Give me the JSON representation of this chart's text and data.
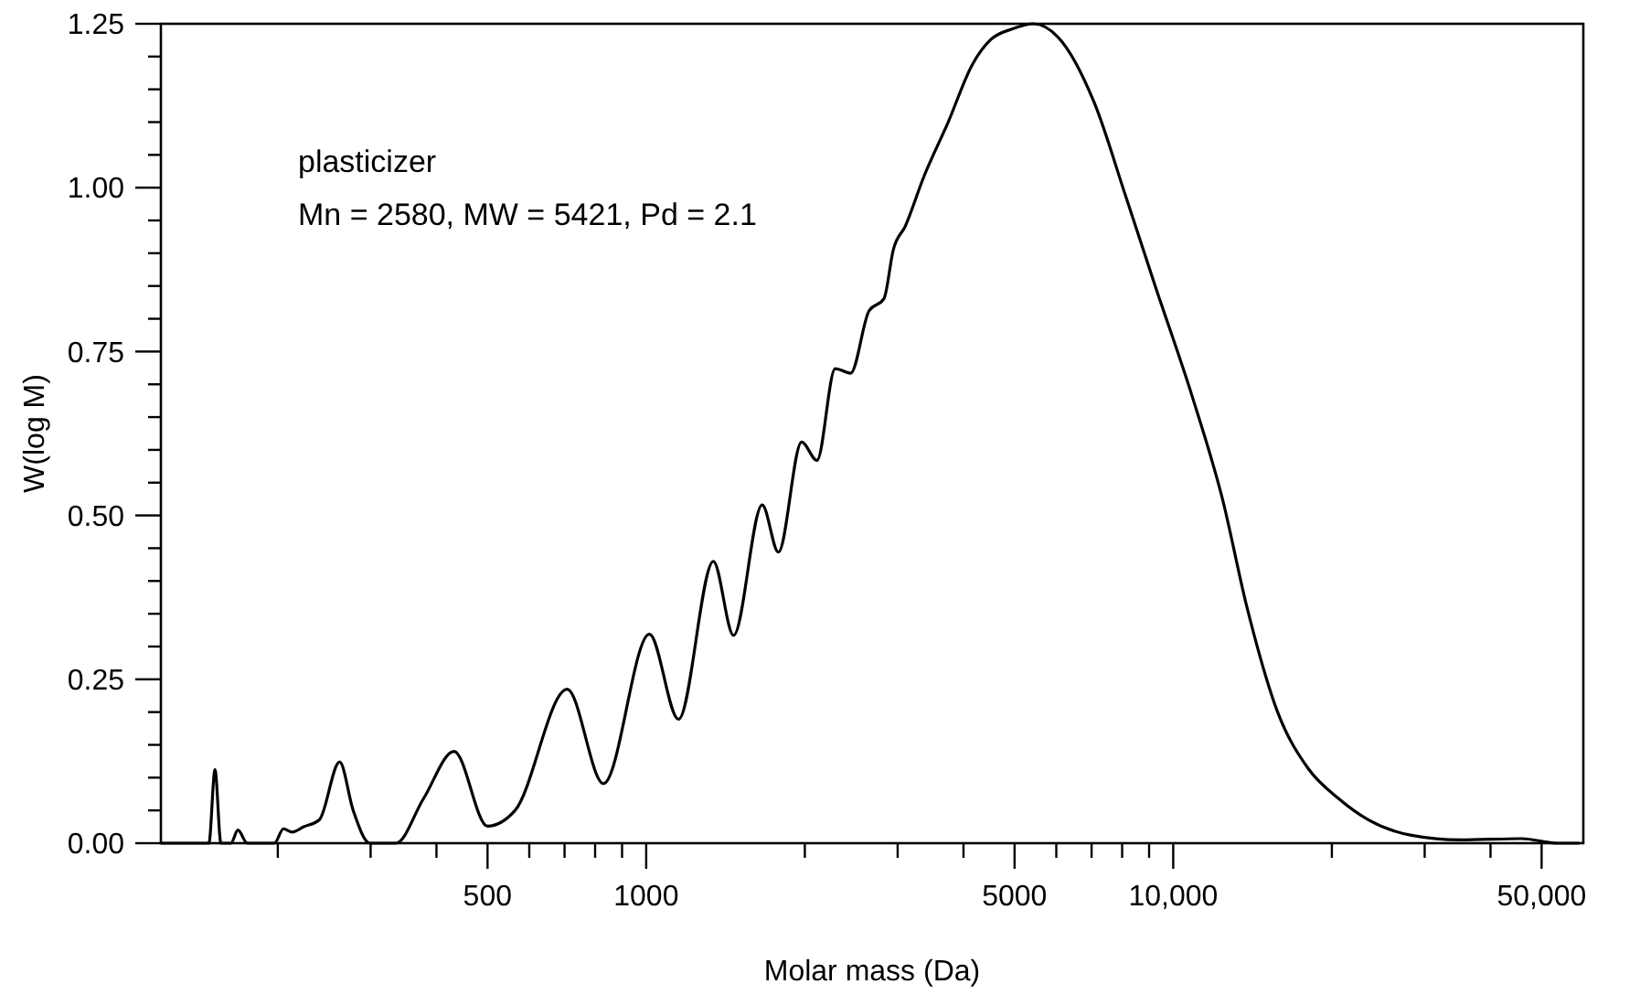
{
  "chart_data": {
    "type": "line",
    "xlabel": "Molar mass (Da)",
    "ylabel": "W(log M)",
    "log": "x",
    "annotations": [
      "plasticizer",
      "Mn = 2580, MW = 5421, Pd = 2.1"
    ],
    "xlim": [
      120,
      60000
    ],
    "xticks": [
      {
        "value": 200,
        "label": null
      },
      {
        "value": 300,
        "label": null
      },
      {
        "value": 400,
        "label": null
      },
      {
        "value": 500,
        "label": "500"
      },
      {
        "value": 600,
        "label": null
      },
      {
        "value": 700,
        "label": null
      },
      {
        "value": 800,
        "label": null
      },
      {
        "value": 900,
        "label": null
      },
      {
        "value": 1000,
        "label": "1000"
      },
      {
        "value": 2000,
        "label": null
      },
      {
        "value": 3000,
        "label": null
      },
      {
        "value": 4000,
        "label": null
      },
      {
        "value": 5000,
        "label": "5000"
      },
      {
        "value": 6000,
        "label": null
      },
      {
        "value": 7000,
        "label": null
      },
      {
        "value": 8000,
        "label": null
      },
      {
        "value": 9000,
        "label": null
      },
      {
        "value": 10000,
        "label": "10,000"
      },
      {
        "value": 20000,
        "label": null
      },
      {
        "value": 30000,
        "label": null
      },
      {
        "value": 40000,
        "label": null
      },
      {
        "value": 50000,
        "label": "50,000"
      }
    ],
    "ylim": [
      0,
      1.25
    ],
    "yticks": [
      {
        "value": 0,
        "label": "0.00"
      },
      {
        "value": 0.05,
        "label": null
      },
      {
        "value": 0.1,
        "label": null
      },
      {
        "value": 0.15,
        "label": null
      },
      {
        "value": 0.2,
        "label": null
      },
      {
        "value": 0.25,
        "label": "0.25"
      },
      {
        "value": 0.3,
        "label": null
      },
      {
        "value": 0.35,
        "label": null
      },
      {
        "value": 0.4,
        "label": null
      },
      {
        "value": 0.45,
        "label": null
      },
      {
        "value": 0.5,
        "label": "0.50"
      },
      {
        "value": 0.55,
        "label": null
      },
      {
        "value": 0.6,
        "label": null
      },
      {
        "value": 0.65,
        "label": null
      },
      {
        "value": 0.7,
        "label": null
      },
      {
        "value": 0.75,
        "label": "0.75"
      },
      {
        "value": 0.8,
        "label": null
      },
      {
        "value": 0.85,
        "label": null
      },
      {
        "value": 0.9,
        "label": null
      },
      {
        "value": 0.95,
        "label": null
      },
      {
        "value": 1,
        "label": "1.00"
      },
      {
        "value": 1.05,
        "label": null
      },
      {
        "value": 1.1,
        "label": null
      },
      {
        "value": 1.15,
        "label": null
      },
      {
        "value": 1.2,
        "label": null
      },
      {
        "value": 1.25,
        "label": "1.25"
      }
    ],
    "grid": false,
    "marker": "none",
    "line_style": "solid",
    "series": [
      {
        "color": "#000000",
        "x": [
          120,
          148,
          152,
          156,
          163,
          168,
          175,
          197,
          205,
          213,
          224,
          240,
          262,
          278,
          299,
          335,
          378,
          432,
          500,
          564,
          708,
          830,
          1014,
          1152,
          1341,
          1465,
          1660,
          1782,
          1972,
          2109,
          2284,
          2443,
          2647,
          2827,
          2943,
          3105,
          3365,
          3741,
          4159,
          4508,
          4943,
          5433,
          6039,
          7096,
          8110,
          9252,
          10860,
          12410,
          13800,
          15780,
          18030,
          20600,
          23530,
          28330,
          35080,
          45800,
          53700,
          59000
        ],
        "values": [
          0,
          0,
          0.112,
          0,
          0,
          0.02,
          0,
          0,
          0.022,
          0.017,
          0.025,
          0.036,
          0.124,
          0.05,
          0,
          0,
          0.068,
          0.14,
          0.026,
          0.05,
          0.235,
          0.091,
          0.319,
          0.189,
          0.43,
          0.317,
          0.516,
          0.444,
          0.612,
          0.584,
          0.724,
          0.717,
          0.812,
          0.831,
          0.905,
          0.942,
          1.017,
          1.1,
          1.188,
          1.226,
          1.242,
          1.25,
          1.23,
          1.128,
          0.989,
          0.849,
          0.682,
          0.524,
          0.36,
          0.2,
          0.114,
          0.068,
          0.035,
          0.012,
          0.005,
          0.007,
          0,
          0
        ]
      }
    ]
  }
}
